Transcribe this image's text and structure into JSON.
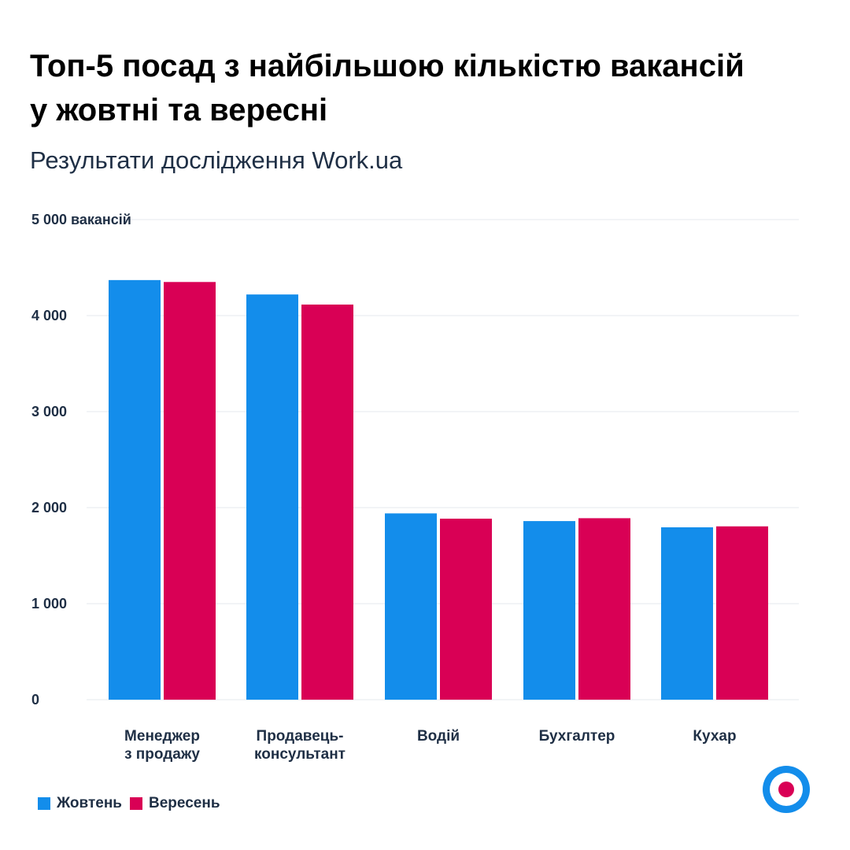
{
  "title_line1": "Топ-5 посад з найбільшою кількістю вакансій",
  "title_line2": "у жовтні та вересні",
  "subtitle": "Результати дослідження Work.ua",
  "colors": {
    "october": "#138deb",
    "september": "#d90055",
    "text": "#1f2f45",
    "grid": "#e6e8ec"
  },
  "legend": [
    {
      "label": "Жовтень",
      "color": "#138deb"
    },
    {
      "label": "Вересень",
      "color": "#d90055"
    }
  ],
  "chart_data": {
    "type": "bar",
    "title": "Топ-5 посад з найбільшою кількістю вакансій у жовтні та вересні",
    "xlabel": "",
    "ylabel": "вакансій",
    "ylim": [
      0,
      5000
    ],
    "y_ticks": [
      {
        "value": 0,
        "label": "0"
      },
      {
        "value": 1000,
        "label": "1 000"
      },
      {
        "value": 2000,
        "label": "2 000"
      },
      {
        "value": 3000,
        "label": "3 000"
      },
      {
        "value": 4000,
        "label": "4 000"
      },
      {
        "value": 5000,
        "label": "5 000 вакансій"
      }
    ],
    "categories": [
      [
        "Менеджер",
        "з продажу"
      ],
      [
        "Продавець-",
        "консультант"
      ],
      [
        "Водій"
      ],
      [
        "Бухгалтер"
      ],
      [
        "Кухар"
      ]
    ],
    "series": [
      {
        "name": "Жовтень",
        "color": "#138deb",
        "values": [
          4370,
          4220,
          1940,
          1860,
          1795
        ]
      },
      {
        "name": "Вересень",
        "color": "#d90055",
        "values": [
          4350,
          4115,
          1885,
          1890,
          1805
        ]
      }
    ],
    "legend_position": "bottom-left",
    "grid": true
  }
}
